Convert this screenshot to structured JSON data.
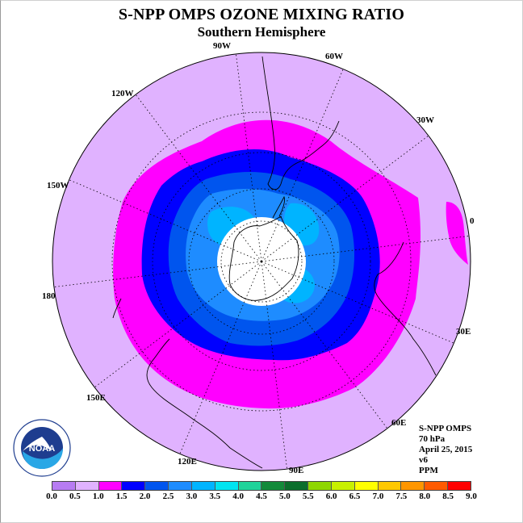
{
  "title": "S-NPP OMPS OZONE MIXING RATIO",
  "subtitle": "Southern Hemisphere",
  "longitude_labels": [
    {
      "id": "90w",
      "text": "90W"
    },
    {
      "id": "60w",
      "text": "60W"
    },
    {
      "id": "30w",
      "text": "30W"
    },
    {
      "id": "0",
      "text": "0"
    },
    {
      "id": "30e",
      "text": "30E"
    },
    {
      "id": "60e",
      "text": "60E"
    },
    {
      "id": "90e",
      "text": "90E"
    },
    {
      "id": "120e",
      "text": "120E"
    },
    {
      "id": "150e",
      "text": "150E"
    },
    {
      "id": "180",
      "text": "180"
    },
    {
      "id": "150w",
      "text": "150W"
    },
    {
      "id": "120w",
      "text": "120W"
    }
  ],
  "info": {
    "instrument": "S-NPP OMPS",
    "level": "70 hPa",
    "date": "April 25, 2015",
    "version": "v6",
    "units": "PPM"
  },
  "logo": {
    "text": "NOAA",
    "ring_text": "NATIONAL OCEANIC AND ATMOSPHERIC ADMINISTRATION · U.S. DEPARTMENT OF COMMERCE"
  },
  "colorbar": {
    "ticks": [
      "0.0",
      "0.5",
      "1.0",
      "1.5",
      "2.0",
      "2.5",
      "3.0",
      "3.5",
      "4.0",
      "4.5",
      "5.0",
      "5.5",
      "6.0",
      "6.5",
      "7.0",
      "7.5",
      "8.0",
      "8.5",
      "9.0"
    ],
    "colors": [
      "#b77cf2",
      "#e0b2ff",
      "#ff00ff",
      "#0000ff",
      "#0055ee",
      "#1e8cff",
      "#00b4ff",
      "#00e4f0",
      "#1fd39a",
      "#138a3a",
      "#0b6e2c",
      "#8ed600",
      "#c8f000",
      "#ffff00",
      "#ffc800",
      "#ff9600",
      "#ff5a00",
      "#ff0000",
      "#8a5b3a"
    ]
  },
  "chart_data": {
    "type": "heatmap",
    "projection": "south polar stereographic",
    "field": "ozone mixing ratio",
    "units": "PPM",
    "pressure_level": "70 hPa",
    "date": "April 25, 2015",
    "levels": [
      0.0,
      0.5,
      1.0,
      1.5,
      2.0,
      2.5,
      3.0,
      3.5,
      4.0,
      4.5,
      5.0,
      5.5,
      6.0,
      6.5,
      7.0,
      7.5,
      8.0,
      8.5,
      9.0
    ],
    "pattern": [
      {
        "band": "0.5-1.0",
        "region": "outer mid-latitudes"
      },
      {
        "band": "1.0-1.5",
        "region": "ring around polar vortex"
      },
      {
        "band": "1.5-2.0",
        "region": "vortex edge"
      },
      {
        "band": "2.0-2.5",
        "region": "inner vortex"
      },
      {
        "band": "2.5-3.0",
        "region": "inner vortex"
      },
      {
        "band": "3.0-3.5",
        "region": "near-pole patches"
      },
      {
        "band": "missing",
        "region": "polar night (white)"
      }
    ]
  }
}
